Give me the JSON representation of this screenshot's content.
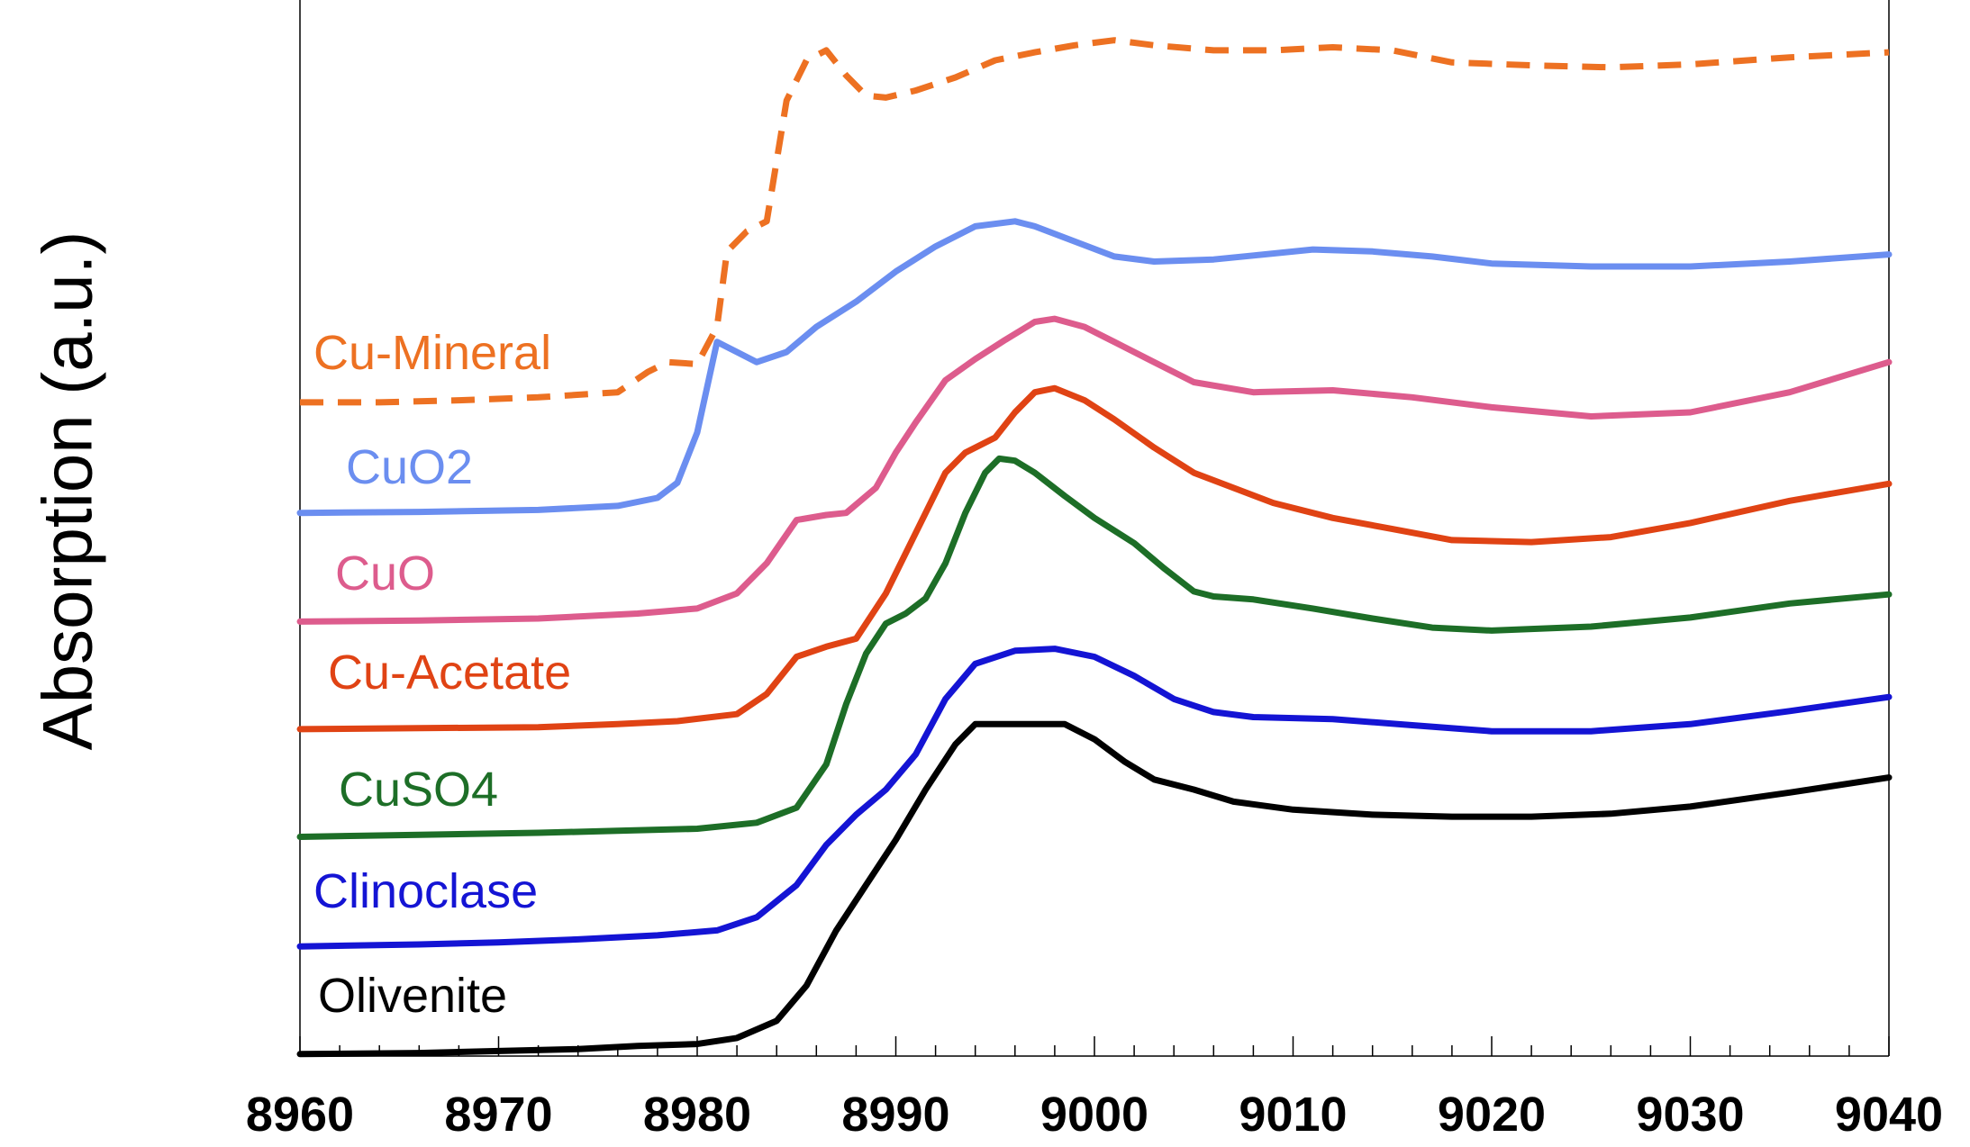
{
  "chart_data": {
    "type": "line",
    "title": "",
    "xlabel": "",
    "ylabel": "Absorption (a.u.)",
    "xlim": [
      8960,
      9040
    ],
    "ylim": [
      0,
      1.05
    ],
    "xticks": [
      8960,
      8970,
      8980,
      8990,
      9000,
      9010,
      9020,
      9030,
      9040
    ],
    "x_tick_labels": [
      "8960",
      "8970",
      "8980",
      "8990",
      "9000",
      "9010",
      "9020",
      "9030",
      "9040"
    ],
    "x_minor_step": 2,
    "grid": false,
    "y_axis_values_hidden": true,
    "legend": "labels placed beside each curve on the left",
    "series": [
      {
        "name": "Cu-Mineral",
        "color": "#ED7122",
        "dash": "dashed",
        "points": [
          [
            8960,
            0.65
          ],
          [
            8964,
            0.65
          ],
          [
            8968,
            0.652
          ],
          [
            8972,
            0.655
          ],
          [
            8976,
            0.66
          ],
          [
            8977.5,
            0.68
          ],
          [
            8978.5,
            0.69
          ],
          [
            8980,
            0.688
          ],
          [
            8981,
            0.725
          ],
          [
            8981.5,
            0.8
          ],
          [
            8982.5,
            0.82
          ],
          [
            8983.5,
            0.83
          ],
          [
            8984.5,
            0.95
          ],
          [
            8985.5,
            0.99
          ],
          [
            8986.5,
            1.0
          ],
          [
            8987.5,
            0.975
          ],
          [
            8988.5,
            0.955
          ],
          [
            8989.5,
            0.953
          ],
          [
            8991,
            0.96
          ],
          [
            8993,
            0.973
          ],
          [
            8995,
            0.99
          ],
          [
            8997,
            0.998
          ],
          [
            8999,
            1.005
          ],
          [
            9001,
            1.01
          ],
          [
            9003,
            1.005
          ],
          [
            9006,
            1.0
          ],
          [
            9009,
            1.0
          ],
          [
            9012,
            1.003
          ],
          [
            9015,
            1.0
          ],
          [
            9018,
            0.988
          ],
          [
            9022,
            0.985
          ],
          [
            9026,
            0.983
          ],
          [
            9030,
            0.986
          ],
          [
            9035,
            0.993
          ],
          [
            9040,
            0.998
          ]
        ]
      },
      {
        "name": "CuO2",
        "color": "#6B8EF0",
        "dash": "solid",
        "points": [
          [
            8960,
            0.54
          ],
          [
            8966,
            0.541
          ],
          [
            8972,
            0.543
          ],
          [
            8976,
            0.547
          ],
          [
            8978,
            0.555
          ],
          [
            8979,
            0.57
          ],
          [
            8980,
            0.62
          ],
          [
            8981,
            0.71
          ],
          [
            8982,
            0.7
          ],
          [
            8983,
            0.69
          ],
          [
            8984.5,
            0.7
          ],
          [
            8986,
            0.725
          ],
          [
            8988,
            0.75
          ],
          [
            8990,
            0.78
          ],
          [
            8992,
            0.805
          ],
          [
            8994,
            0.825
          ],
          [
            8996,
            0.83
          ],
          [
            8997,
            0.825
          ],
          [
            8999,
            0.81
          ],
          [
            9001,
            0.795
          ],
          [
            9003,
            0.79
          ],
          [
            9006,
            0.792
          ],
          [
            9008,
            0.796
          ],
          [
            9011,
            0.802
          ],
          [
            9014,
            0.8
          ],
          [
            9017,
            0.795
          ],
          [
            9020,
            0.788
          ],
          [
            9025,
            0.785
          ],
          [
            9030,
            0.785
          ],
          [
            9035,
            0.79
          ],
          [
            9040,
            0.797
          ]
        ]
      },
      {
        "name": "CuO",
        "color": "#DD5C8D",
        "dash": "solid",
        "points": [
          [
            8960,
            0.432
          ],
          [
            8966,
            0.433
          ],
          [
            8972,
            0.435
          ],
          [
            8977,
            0.44
          ],
          [
            8980,
            0.445
          ],
          [
            8982,
            0.46
          ],
          [
            8983.5,
            0.49
          ],
          [
            8985,
            0.533
          ],
          [
            8986.5,
            0.538
          ],
          [
            8987.5,
            0.54
          ],
          [
            8989,
            0.565
          ],
          [
            8990,
            0.6
          ],
          [
            8991,
            0.63
          ],
          [
            8992.5,
            0.672
          ],
          [
            8994,
            0.693
          ],
          [
            8995.5,
            0.712
          ],
          [
            8997,
            0.73
          ],
          [
            8998,
            0.733
          ],
          [
            8999.5,
            0.725
          ],
          [
            9001,
            0.71
          ],
          [
            9003,
            0.69
          ],
          [
            9005,
            0.67
          ],
          [
            9008,
            0.66
          ],
          [
            9012,
            0.662
          ],
          [
            9016,
            0.655
          ],
          [
            9020,
            0.645
          ],
          [
            9025,
            0.636
          ],
          [
            9030,
            0.64
          ],
          [
            9035,
            0.66
          ],
          [
            9040,
            0.69
          ]
        ]
      },
      {
        "name": "Cu-Acetate",
        "color": "#E04314",
        "dash": "solid",
        "points": [
          [
            8960,
            0.325
          ],
          [
            8966,
            0.326
          ],
          [
            8972,
            0.327
          ],
          [
            8976,
            0.33
          ],
          [
            8979,
            0.333
          ],
          [
            8982,
            0.34
          ],
          [
            8983.5,
            0.36
          ],
          [
            8985,
            0.397
          ],
          [
            8986.5,
            0.407
          ],
          [
            8988,
            0.415
          ],
          [
            8989.5,
            0.46
          ],
          [
            8990.5,
            0.5
          ],
          [
            8991.5,
            0.54
          ],
          [
            8992.5,
            0.58
          ],
          [
            8993.5,
            0.6
          ],
          [
            8995,
            0.615
          ],
          [
            8996,
            0.64
          ],
          [
            8997,
            0.66
          ],
          [
            8998,
            0.664
          ],
          [
            8999.5,
            0.652
          ],
          [
            9001,
            0.633
          ],
          [
            9003,
            0.605
          ],
          [
            9005,
            0.58
          ],
          [
            9009,
            0.55
          ],
          [
            9012,
            0.535
          ],
          [
            9015,
            0.524
          ],
          [
            9018,
            0.513
          ],
          [
            9022,
            0.511
          ],
          [
            9026,
            0.516
          ],
          [
            9030,
            0.53
          ],
          [
            9035,
            0.552
          ],
          [
            9040,
            0.569
          ]
        ]
      },
      {
        "name": "CuSO4",
        "color": "#1D6E27",
        "dash": "solid",
        "points": [
          [
            8960,
            0.218
          ],
          [
            8966,
            0.22
          ],
          [
            8972,
            0.222
          ],
          [
            8976,
            0.224
          ],
          [
            8980,
            0.226
          ],
          [
            8983,
            0.232
          ],
          [
            8985,
            0.247
          ],
          [
            8986.5,
            0.29
          ],
          [
            8987.5,
            0.35
          ],
          [
            8988.5,
            0.4
          ],
          [
            8989.5,
            0.43
          ],
          [
            8990.5,
            0.44
          ],
          [
            8991.5,
            0.455
          ],
          [
            8992.5,
            0.49
          ],
          [
            8993.5,
            0.54
          ],
          [
            8994.5,
            0.58
          ],
          [
            8995.2,
            0.594
          ],
          [
            8996,
            0.592
          ],
          [
            8997,
            0.58
          ],
          [
            8998.5,
            0.557
          ],
          [
            9000,
            0.535
          ],
          [
            9002,
            0.51
          ],
          [
            9003.5,
            0.485
          ],
          [
            9005,
            0.462
          ],
          [
            9006,
            0.457
          ],
          [
            9008,
            0.454
          ],
          [
            9011,
            0.445
          ],
          [
            9014,
            0.435
          ],
          [
            9017,
            0.426
          ],
          [
            9020,
            0.423
          ],
          [
            9025,
            0.427
          ],
          [
            9030,
            0.436
          ],
          [
            9035,
            0.45
          ],
          [
            9040,
            0.459
          ]
        ]
      },
      {
        "name": "Clinoclase",
        "color": "#1414D4",
        "dash": "solid",
        "points": [
          [
            8960,
            0.109
          ],
          [
            8966,
            0.111
          ],
          [
            8970,
            0.113
          ],
          [
            8974,
            0.116
          ],
          [
            8978,
            0.12
          ],
          [
            8981,
            0.125
          ],
          [
            8983,
            0.138
          ],
          [
            8985,
            0.17
          ],
          [
            8986.5,
            0.21
          ],
          [
            8988,
            0.24
          ],
          [
            8989.5,
            0.265
          ],
          [
            8991,
            0.3
          ],
          [
            8992.5,
            0.355
          ],
          [
            8994,
            0.39
          ],
          [
            8996,
            0.403
          ],
          [
            8998,
            0.405
          ],
          [
            9000,
            0.397
          ],
          [
            9002,
            0.378
          ],
          [
            9004,
            0.355
          ],
          [
            9006,
            0.342
          ],
          [
            9008,
            0.337
          ],
          [
            9012,
            0.335
          ],
          [
            9016,
            0.329
          ],
          [
            9020,
            0.323
          ],
          [
            9025,
            0.323
          ],
          [
            9030,
            0.33
          ],
          [
            9035,
            0.343
          ],
          [
            9040,
            0.357
          ]
        ]
      },
      {
        "name": "Olivenite",
        "color": "#000000",
        "dash": "solid",
        "points": [
          [
            8960,
            0.002
          ],
          [
            8966,
            0.003
          ],
          [
            8970,
            0.005
          ],
          [
            8974,
            0.007
          ],
          [
            8977,
            0.01
          ],
          [
            8980,
            0.012
          ],
          [
            8982,
            0.018
          ],
          [
            8984,
            0.035
          ],
          [
            8985.5,
            0.07
          ],
          [
            8987,
            0.125
          ],
          [
            8988.5,
            0.17
          ],
          [
            8990,
            0.215
          ],
          [
            8991.5,
            0.265
          ],
          [
            8993,
            0.31
          ],
          [
            8994,
            0.33
          ],
          [
            8995.5,
            0.33
          ],
          [
            8997,
            0.33
          ],
          [
            8998.5,
            0.33
          ],
          [
            9000,
            0.315
          ],
          [
            9001.5,
            0.293
          ],
          [
            9003,
            0.275
          ],
          [
            9005,
            0.265
          ],
          [
            9007,
            0.253
          ],
          [
            9010,
            0.245
          ],
          [
            9014,
            0.24
          ],
          [
            9018,
            0.238
          ],
          [
            9022,
            0.238
          ],
          [
            9026,
            0.241
          ],
          [
            9030,
            0.248
          ],
          [
            9035,
            0.262
          ],
          [
            9040,
            0.277
          ]
        ]
      }
    ],
    "series_labels": [
      "Cu-Mineral",
      "CuO2",
      "CuO",
      "Cu-Acetate",
      "CuSO4",
      "Clinoclase",
      "Olivenite"
    ]
  }
}
